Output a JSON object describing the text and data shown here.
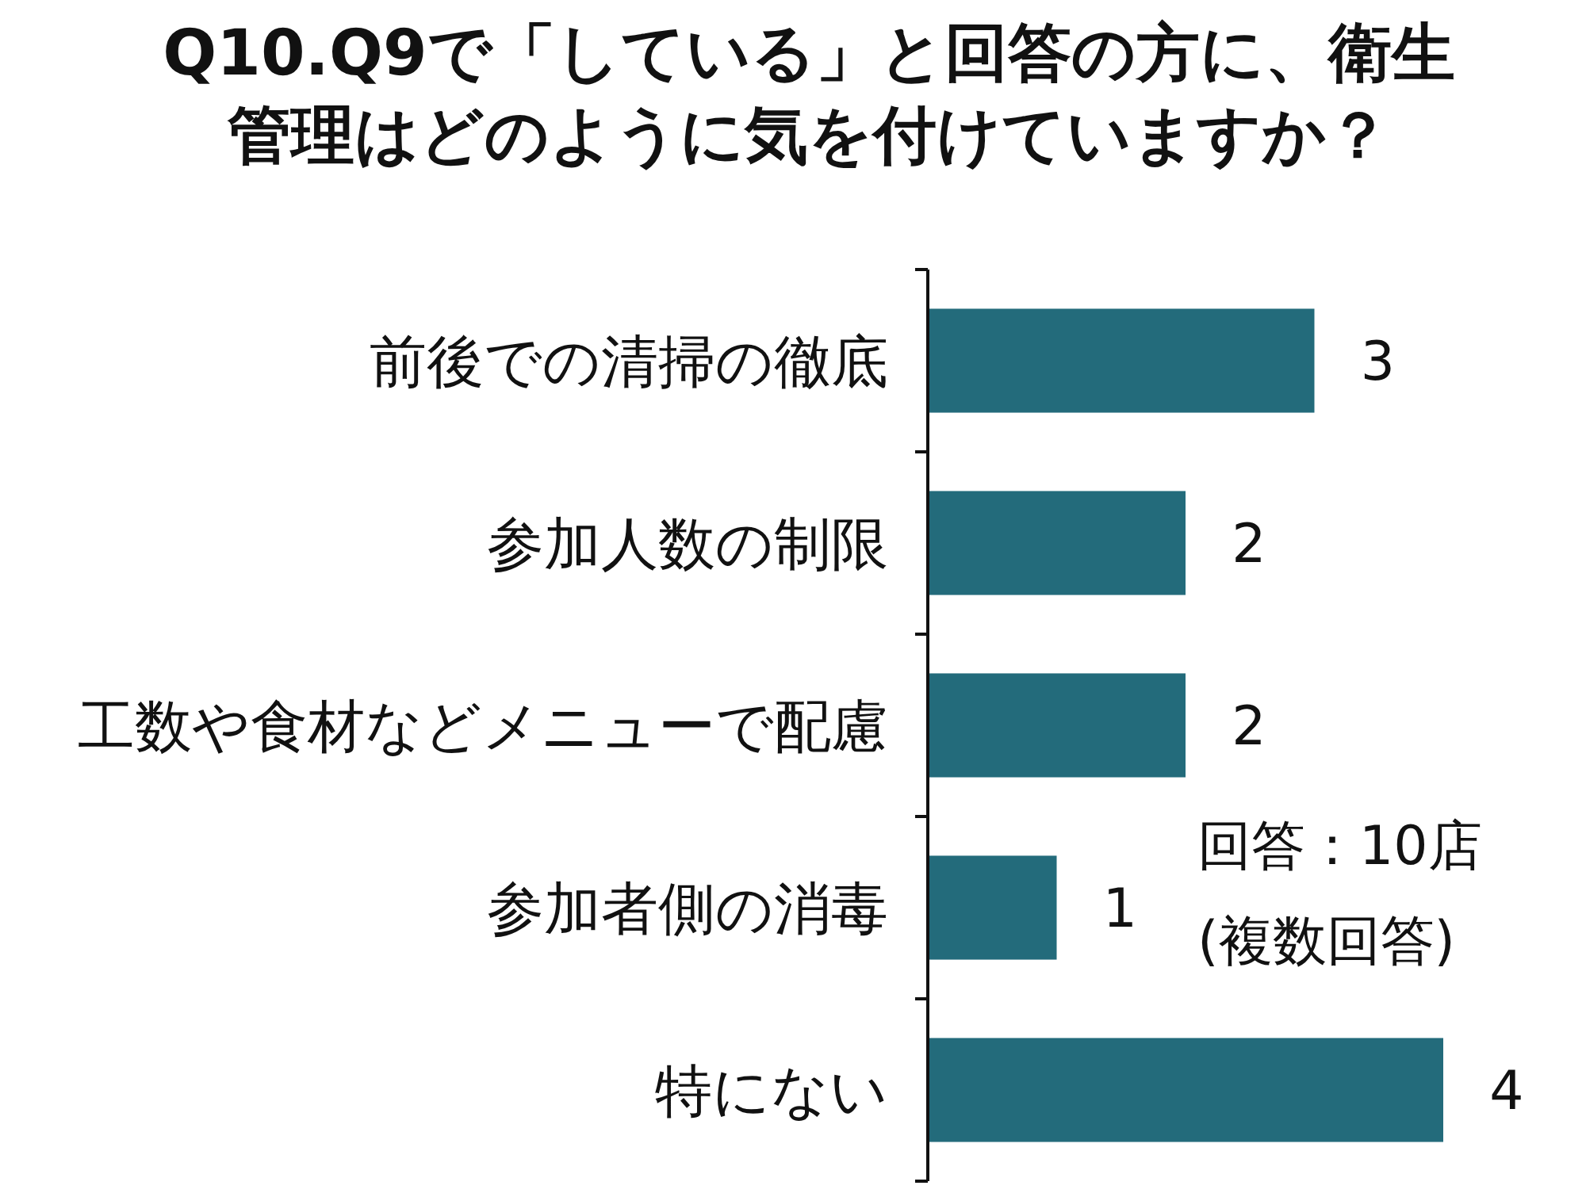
{
  "chart_data": {
    "type": "bar",
    "orientation": "horizontal",
    "title": "Q10.Q9で「している」と回答の方に、衛生管理はどのように気を付けていますか？",
    "categories": [
      "前後での清掃の徹底",
      "参加人数の制限",
      "工数や食材などメニューで配慮",
      "参加者側の消毒",
      "特にない"
    ],
    "values": [
      3,
      2,
      2,
      1,
      4
    ],
    "color": "#236b7b",
    "data_labels": true,
    "annotations": [
      "回答：10店",
      "(複数回答)"
    ]
  }
}
